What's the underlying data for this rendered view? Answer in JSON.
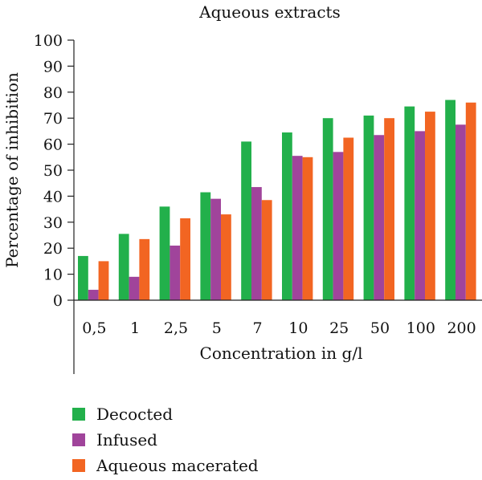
{
  "chart_data": {
    "type": "bar",
    "title": "Aqueous extracts",
    "xlabel": "Concentration in g/l",
    "ylabel": "Percentage of inhibition",
    "ylim": [
      0,
      100
    ],
    "yticks": [
      "0",
      "10",
      "20",
      "30",
      "40",
      "50",
      "60",
      "70",
      "80",
      "90",
      "100"
    ],
    "categories": [
      "0,5",
      "1",
      "2,5",
      "5",
      "7",
      "10",
      "25",
      "50",
      "100",
      "200"
    ],
    "series": [
      {
        "name": "Decocted",
        "color": "#22b04b",
        "values": [
          17,
          25.5,
          36,
          41.5,
          61,
          64.5,
          70,
          71,
          74.5,
          77
        ]
      },
      {
        "name": "Infused",
        "color": "#a0449b",
        "values": [
          4,
          9,
          21,
          39,
          43.5,
          55.5,
          57,
          63.5,
          65,
          67.5
        ]
      },
      {
        "name": "Aqueous macerated",
        "color": "#f26522",
        "values": [
          15,
          23.5,
          31.5,
          33,
          38.5,
          55,
          62.5,
          70,
          72.5,
          76
        ]
      }
    ],
    "legend_position": "bottom-left"
  }
}
